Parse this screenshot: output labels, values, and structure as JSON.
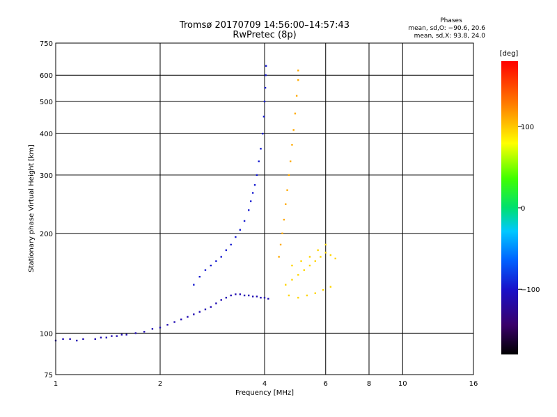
{
  "chart_data": {
    "type": "scatter",
    "title": "Tromsø 20170709 14:56:00–14:57:43",
    "subtitle": "RwPretec (8p)",
    "xlabel": "Frequency [MHz]",
    "ylabel": "Stationary phase Virtual Height [km]",
    "x_scale": "log",
    "y_scale": "log",
    "xlim": [
      1,
      16
    ],
    "ylim": [
      75,
      750
    ],
    "x_ticks": [
      1,
      2,
      4,
      6,
      8,
      10,
      16
    ],
    "y_ticks": [
      75,
      100,
      200,
      300,
      400,
      500,
      600,
      750
    ],
    "grid": true,
    "phase_panel": {
      "heading": "Phases",
      "line_o": "mean, sd,O: −90.6, 20.6",
      "line_x": "mean, sd,X:  93.8, 24.0"
    },
    "colorbar": {
      "label": "[deg]",
      "range": [
        -180,
        180
      ],
      "ticks": [
        "100",
        "0",
        "−100"
      ],
      "tick_values": [
        100,
        0,
        -100
      ]
    },
    "series": [
      {
        "trace": "lower-layer-echo",
        "phase": -110,
        "points": [
          [
            1.0,
            95
          ],
          [
            1.05,
            96
          ],
          [
            1.1,
            96
          ],
          [
            1.15,
            95
          ],
          [
            1.2,
            96
          ],
          [
            1.3,
            96
          ],
          [
            1.35,
            97
          ],
          [
            1.4,
            97
          ],
          [
            1.45,
            98
          ],
          [
            1.5,
            98
          ],
          [
            1.55,
            99
          ],
          [
            1.6,
            99
          ],
          [
            1.7,
            100
          ],
          [
            1.8,
            101
          ],
          [
            1.9,
            103
          ],
          [
            2.0,
            104
          ],
          [
            2.1,
            106
          ],
          [
            2.2,
            108
          ],
          [
            2.3,
            110
          ],
          [
            2.4,
            112
          ],
          [
            2.5,
            114
          ],
          [
            2.6,
            116
          ],
          [
            2.7,
            118
          ],
          [
            2.8,
            120
          ],
          [
            2.9,
            123
          ],
          [
            3.0,
            126
          ],
          [
            3.1,
            128
          ],
          [
            3.2,
            130
          ],
          [
            3.3,
            131
          ],
          [
            3.4,
            131
          ],
          [
            3.5,
            130
          ],
          [
            3.6,
            130
          ],
          [
            3.7,
            129
          ],
          [
            3.8,
            129
          ],
          [
            3.9,
            128
          ],
          [
            4.0,
            128
          ],
          [
            4.1,
            127
          ]
        ]
      },
      {
        "trace": "f-region-o-echo",
        "phase": -95,
        "points": [
          [
            2.5,
            140
          ],
          [
            2.6,
            148
          ],
          [
            2.7,
            155
          ],
          [
            2.8,
            160
          ],
          [
            2.9,
            165
          ],
          [
            3.0,
            170
          ],
          [
            3.1,
            178
          ],
          [
            3.2,
            185
          ],
          [
            3.3,
            195
          ],
          [
            3.4,
            205
          ],
          [
            3.5,
            218
          ],
          [
            3.6,
            235
          ],
          [
            3.65,
            250
          ],
          [
            3.7,
            265
          ],
          [
            3.75,
            280
          ],
          [
            3.8,
            300
          ],
          [
            3.85,
            330
          ],
          [
            3.9,
            360
          ],
          [
            3.95,
            400
          ],
          [
            3.98,
            450
          ],
          [
            4.0,
            500
          ],
          [
            4.02,
            550
          ],
          [
            4.03,
            600
          ],
          [
            4.04,
            640
          ]
        ]
      },
      {
        "trace": "f-region-x-echo",
        "phase": 110,
        "points": [
          [
            4.4,
            170
          ],
          [
            4.45,
            185
          ],
          [
            4.5,
            200
          ],
          [
            4.55,
            220
          ],
          [
            4.6,
            245
          ],
          [
            4.65,
            270
          ],
          [
            4.7,
            300
          ],
          [
            4.75,
            330
          ],
          [
            4.8,
            370
          ],
          [
            4.85,
            410
          ],
          [
            4.9,
            460
          ],
          [
            4.95,
            520
          ],
          [
            5.0,
            580
          ],
          [
            5.0,
            620
          ]
        ]
      },
      {
        "trace": "x-mode-cluster",
        "phase": 95,
        "points": [
          [
            4.6,
            140
          ],
          [
            4.8,
            145
          ],
          [
            5.0,
            150
          ],
          [
            5.2,
            155
          ],
          [
            5.4,
            160
          ],
          [
            5.6,
            165
          ],
          [
            5.8,
            170
          ],
          [
            6.0,
            175
          ],
          [
            6.2,
            172
          ],
          [
            6.4,
            168
          ],
          [
            4.7,
            130
          ],
          [
            5.0,
            128
          ],
          [
            5.3,
            130
          ],
          [
            5.6,
            132
          ],
          [
            5.9,
            135
          ],
          [
            6.2,
            138
          ],
          [
            4.8,
            160
          ],
          [
            5.1,
            165
          ],
          [
            5.4,
            170
          ],
          [
            5.7,
            178
          ],
          [
            6.0,
            185
          ]
        ]
      }
    ]
  }
}
